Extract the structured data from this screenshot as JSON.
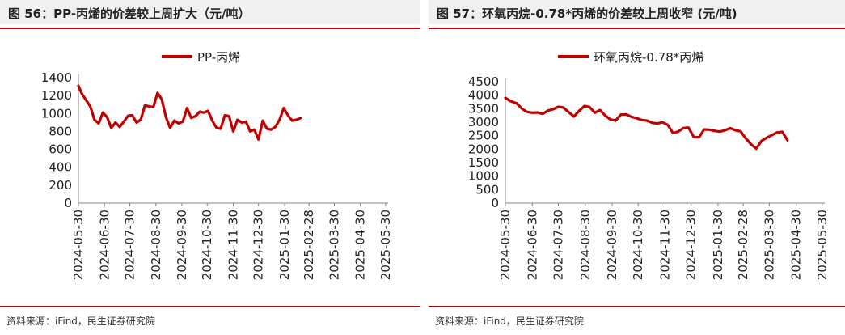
{
  "left": {
    "title": "图 56：PP-丙烯的价差较上周扩大（元/吨）",
    "source": "资料来源：iFind，民生证券研究院"
  },
  "right": {
    "title": "图 57：环氧丙烷-0.78*丙烯的价差较上周收窄 (元/吨)",
    "source": "资料来源：iFind，民生证券研究院"
  },
  "colors": {
    "line": "#c00000",
    "title_bg": "#f0f0f0",
    "axis": "#888888"
  },
  "chart_data": [
    {
      "type": "line",
      "title": "PP-丙烯",
      "legend": "PP-丙烯",
      "legend_position": "top-center",
      "ylim": [
        0,
        1400
      ],
      "yticks": [
        0,
        200,
        400,
        600,
        800,
        1000,
        1200,
        1400
      ],
      "xticks": [
        "2024-05-30",
        "2024-06-30",
        "2024-07-30",
        "2024-08-30",
        "2024-09-30",
        "2024-10-30",
        "2024-11-30",
        "2024-12-30",
        "2025-01-30",
        "2025-02-28",
        "2025-03-30",
        "2025-04-30",
        "2025-05-30"
      ],
      "xrange": [
        "2024-05-30",
        "2025-06-02"
      ],
      "series": [
        {
          "name": "PP-丙烯",
          "points": [
            [
              "2024-05-30",
              1310
            ],
            [
              "2024-06-03",
              1220
            ],
            [
              "2024-06-08",
              1150
            ],
            [
              "2024-06-13",
              1080
            ],
            [
              "2024-06-18",
              930
            ],
            [
              "2024-06-23",
              890
            ],
            [
              "2024-06-28",
              1010
            ],
            [
              "2024-07-03",
              960
            ],
            [
              "2024-07-08",
              840
            ],
            [
              "2024-07-13",
              900
            ],
            [
              "2024-07-18",
              850
            ],
            [
              "2024-07-23",
              910
            ],
            [
              "2024-07-28",
              975
            ],
            [
              "2024-08-02",
              980
            ],
            [
              "2024-08-07",
              900
            ],
            [
              "2024-08-12",
              930
            ],
            [
              "2024-08-17",
              1090
            ],
            [
              "2024-08-22",
              1080
            ],
            [
              "2024-08-27",
              1070
            ],
            [
              "2024-09-01",
              1230
            ],
            [
              "2024-09-06",
              1160
            ],
            [
              "2024-09-11",
              960
            ],
            [
              "2024-09-16",
              840
            ],
            [
              "2024-09-21",
              920
            ],
            [
              "2024-09-26",
              890
            ],
            [
              "2024-10-01",
              910
            ],
            [
              "2024-10-06",
              1060
            ],
            [
              "2024-10-11",
              950
            ],
            [
              "2024-10-16",
              970
            ],
            [
              "2024-10-21",
              1020
            ],
            [
              "2024-10-26",
              1010
            ],
            [
              "2024-10-31",
              1030
            ],
            [
              "2024-11-05",
              920
            ],
            [
              "2024-11-10",
              840
            ],
            [
              "2024-11-15",
              830
            ],
            [
              "2024-11-20",
              980
            ],
            [
              "2024-11-25",
              970
            ],
            [
              "2024-11-30",
              800
            ],
            [
              "2024-12-05",
              930
            ],
            [
              "2024-12-10",
              900
            ],
            [
              "2024-12-15",
              910
            ],
            [
              "2024-12-20",
              800
            ],
            [
              "2024-12-25",
              820
            ],
            [
              "2024-12-30",
              710
            ],
            [
              "2025-01-04",
              920
            ],
            [
              "2025-01-09",
              830
            ],
            [
              "2025-01-14",
              820
            ],
            [
              "2025-01-19",
              850
            ],
            [
              "2025-01-24",
              930
            ],
            [
              "2025-01-29",
              1060
            ],
            [
              "2025-02-03",
              980
            ],
            [
              "2025-02-08",
              920
            ],
            [
              "2025-02-13",
              930
            ],
            [
              "2025-02-18",
              950
            ]
          ]
        }
      ]
    },
    {
      "type": "line",
      "title": "环氧丙烷-0.78*丙烯",
      "legend": "环氧丙烷-0.78*丙烯",
      "legend_position": "top-center",
      "ylim": [
        0,
        4500
      ],
      "yticks": [
        0,
        500,
        1000,
        1500,
        2000,
        2500,
        3000,
        3500,
        4000,
        4500
      ],
      "xticks": [
        "2024-05-30",
        "2024-06-30",
        "2024-07-30",
        "2024-08-30",
        "2024-09-30",
        "2024-10-30",
        "2024-11-30",
        "2024-12-30",
        "2025-01-30",
        "2025-02-28",
        "2025-03-30",
        "2025-04-30",
        "2025-05-30"
      ],
      "xrange": [
        "2024-05-30",
        "2025-06-02"
      ],
      "series": [
        {
          "name": "环氧丙烷-0.78*丙烯",
          "points": [
            [
              "2024-05-30",
              3900
            ],
            [
              "2024-06-05",
              3780
            ],
            [
              "2024-06-12",
              3700
            ],
            [
              "2024-06-18",
              3500
            ],
            [
              "2024-06-24",
              3380
            ],
            [
              "2024-06-30",
              3350
            ],
            [
              "2024-07-06",
              3360
            ],
            [
              "2024-07-12",
              3310
            ],
            [
              "2024-07-18",
              3430
            ],
            [
              "2024-07-24",
              3480
            ],
            [
              "2024-07-30",
              3570
            ],
            [
              "2024-08-05",
              3540
            ],
            [
              "2024-08-11",
              3370
            ],
            [
              "2024-08-17",
              3210
            ],
            [
              "2024-08-23",
              3420
            ],
            [
              "2024-08-29",
              3600
            ],
            [
              "2024-09-04",
              3560
            ],
            [
              "2024-09-10",
              3350
            ],
            [
              "2024-09-16",
              3450
            ],
            [
              "2024-09-22",
              3250
            ],
            [
              "2024-09-28",
              3100
            ],
            [
              "2024-10-04",
              3060
            ],
            [
              "2024-10-10",
              3280
            ],
            [
              "2024-10-16",
              3290
            ],
            [
              "2024-10-22",
              3200
            ],
            [
              "2024-10-28",
              3150
            ],
            [
              "2024-11-03",
              3080
            ],
            [
              "2024-11-09",
              3060
            ],
            [
              "2024-11-15",
              2980
            ],
            [
              "2024-11-21",
              2950
            ],
            [
              "2024-11-27",
              3000
            ],
            [
              "2024-12-03",
              2900
            ],
            [
              "2024-12-09",
              2600
            ],
            [
              "2024-12-15",
              2650
            ],
            [
              "2024-12-21",
              2780
            ],
            [
              "2024-12-27",
              2800
            ],
            [
              "2025-01-02",
              2450
            ],
            [
              "2025-01-08",
              2440
            ],
            [
              "2025-01-14",
              2730
            ],
            [
              "2025-01-20",
              2720
            ],
            [
              "2025-01-26",
              2680
            ],
            [
              "2025-02-01",
              2650
            ],
            [
              "2025-02-07",
              2700
            ],
            [
              "2025-02-13",
              2780
            ],
            [
              "2025-02-19",
              2700
            ],
            [
              "2025-02-25",
              2660
            ],
            [
              "2025-03-03",
              2400
            ],
            [
              "2025-03-09",
              2180
            ],
            [
              "2025-03-15",
              2020
            ],
            [
              "2025-03-21",
              2300
            ],
            [
              "2025-03-27",
              2420
            ],
            [
              "2025-04-02",
              2520
            ],
            [
              "2025-04-08",
              2620
            ],
            [
              "2025-04-14",
              2640
            ],
            [
              "2025-04-20",
              2330
            ]
          ]
        }
      ]
    }
  ]
}
